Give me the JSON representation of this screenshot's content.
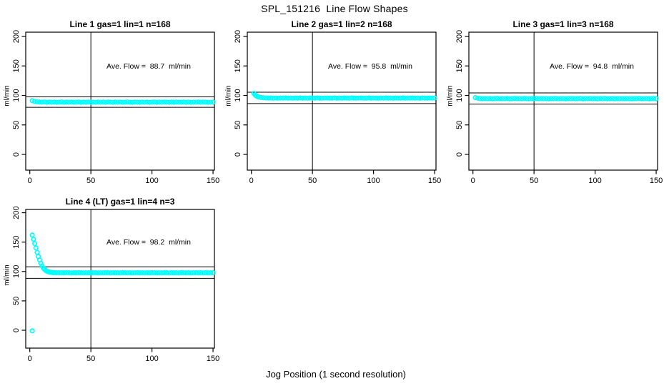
{
  "chart_data": {
    "type": "scatter",
    "title": "SPL_151216  Line Flow Shapes",
    "xlabel": "Jog Position (1 second resolution)",
    "ylabel": "ml/min",
    "marker": "open-circle",
    "point_color": "#00ffff",
    "line_color": "#000000",
    "background": "#ffffff",
    "grid": false,
    "legend": "none",
    "xlim": [
      0,
      150
    ],
    "ylim": [
      -20,
      200
    ],
    "xticks": [
      0,
      50,
      100,
      150
    ],
    "yticks": [
      0,
      50,
      100,
      150,
      200
    ],
    "vline_x": 50,
    "panels": [
      {
        "title": "Line 1 gas=1 lin=1 n=168",
        "annotation": "Ave. Flow =  88.7  ml/min",
        "ave_flow": 88.7,
        "hlines": [
          97.6,
          79.8
        ],
        "vline": 50,
        "points": [
          [
            2,
            91.0
          ],
          [
            4,
            89.7
          ],
          [
            6,
            89.1
          ],
          [
            8,
            88.8
          ],
          [
            10,
            88.6
          ],
          [
            12,
            88.9
          ],
          [
            14,
            88.4
          ],
          [
            16,
            88.7
          ],
          [
            18,
            88.5
          ],
          [
            20,
            88.8
          ],
          [
            22,
            88.3
          ],
          [
            24,
            88.6
          ],
          [
            26,
            88.9
          ],
          [
            28,
            88.4
          ],
          [
            30,
            88.7
          ],
          [
            32,
            88.5
          ],
          [
            34,
            88.8
          ],
          [
            36,
            88.4
          ],
          [
            38,
            88.6
          ],
          [
            40,
            88.9
          ],
          [
            42,
            88.3
          ],
          [
            44,
            88.7
          ],
          [
            46,
            88.5
          ],
          [
            48,
            88.8
          ],
          [
            50,
            88.4
          ],
          [
            52,
            88.6
          ],
          [
            54,
            88.3
          ],
          [
            56,
            88.8
          ],
          [
            58,
            88.5
          ],
          [
            60,
            88.7
          ],
          [
            62,
            88.4
          ],
          [
            64,
            88.9
          ],
          [
            66,
            88.6
          ],
          [
            68,
            88.3
          ],
          [
            70,
            88.7
          ],
          [
            72,
            88.5
          ],
          [
            74,
            88.8
          ],
          [
            76,
            88.4
          ],
          [
            78,
            88.6
          ],
          [
            80,
            88.9
          ],
          [
            82,
            88.5
          ],
          [
            84,
            88.3
          ],
          [
            86,
            88.7
          ],
          [
            88,
            88.6
          ],
          [
            90,
            88.4
          ],
          [
            92,
            88.8
          ],
          [
            94,
            88.5
          ],
          [
            96,
            88.7
          ],
          [
            98,
            88.3
          ],
          [
            100,
            88.6
          ],
          [
            102,
            88.9
          ],
          [
            104,
            88.4
          ],
          [
            106,
            88.7
          ],
          [
            108,
            88.5
          ],
          [
            110,
            88.8
          ],
          [
            112,
            88.6
          ],
          [
            114,
            88.3
          ],
          [
            116,
            88.7
          ],
          [
            118,
            88.4
          ],
          [
            120,
            88.9
          ],
          [
            122,
            88.5
          ],
          [
            124,
            88.6
          ],
          [
            126,
            88.8
          ],
          [
            128,
            88.4
          ],
          [
            130,
            88.7
          ],
          [
            132,
            88.3
          ],
          [
            134,
            88.6
          ],
          [
            136,
            88.5
          ],
          [
            138,
            88.9
          ],
          [
            140,
            88.4
          ],
          [
            142,
            88.7
          ],
          [
            144,
            88.6
          ],
          [
            146,
            88.3
          ],
          [
            148,
            88.5
          ],
          [
            150,
            88.6
          ]
        ]
      },
      {
        "title": "Line 2 gas=1 lin=2 n=168",
        "annotation": "Ave. Flow =  95.8  ml/min",
        "ave_flow": 95.8,
        "hlines": [
          105.4,
          86.2
        ],
        "vline": 50,
        "points": [
          [
            2,
            103.5
          ],
          [
            3,
            101.0
          ],
          [
            4,
            99.3
          ],
          [
            5,
            98.0
          ],
          [
            6,
            97.2
          ],
          [
            8,
            96.4
          ],
          [
            10,
            96.0
          ],
          [
            12,
            95.7
          ],
          [
            14,
            95.5
          ],
          [
            16,
            95.8
          ],
          [
            18,
            95.4
          ],
          [
            20,
            95.6
          ],
          [
            22,
            95.3
          ],
          [
            24,
            95.7
          ],
          [
            26,
            95.5
          ],
          [
            28,
            95.8
          ],
          [
            30,
            95.4
          ],
          [
            32,
            95.6
          ],
          [
            34,
            95.3
          ],
          [
            36,
            95.7
          ],
          [
            38,
            95.5
          ],
          [
            40,
            95.8
          ],
          [
            42,
            95.4
          ],
          [
            44,
            95.6
          ],
          [
            46,
            95.3
          ],
          [
            48,
            95.7
          ],
          [
            50,
            95.5
          ],
          [
            52,
            95.4
          ],
          [
            54,
            95.8
          ],
          [
            56,
            95.5
          ],
          [
            58,
            95.3
          ],
          [
            60,
            95.6
          ],
          [
            62,
            95.7
          ],
          [
            64,
            95.4
          ],
          [
            66,
            95.5
          ],
          [
            68,
            95.8
          ],
          [
            70,
            95.3
          ],
          [
            72,
            95.6
          ],
          [
            74,
            95.4
          ],
          [
            76,
            95.7
          ],
          [
            78,
            95.5
          ],
          [
            80,
            95.3
          ],
          [
            82,
            95.8
          ],
          [
            84,
            95.5
          ],
          [
            86,
            95.4
          ],
          [
            88,
            95.6
          ],
          [
            90,
            95.7
          ],
          [
            92,
            95.3
          ],
          [
            94,
            95.5
          ],
          [
            96,
            95.8
          ],
          [
            98,
            95.4
          ],
          [
            100,
            95.6
          ],
          [
            102,
            95.5
          ],
          [
            104,
            95.3
          ],
          [
            106,
            95.7
          ],
          [
            108,
            95.4
          ],
          [
            110,
            95.8
          ],
          [
            112,
            95.5
          ],
          [
            114,
            95.6
          ],
          [
            116,
            95.3
          ],
          [
            118,
            95.7
          ],
          [
            120,
            95.4
          ],
          [
            122,
            95.5
          ],
          [
            124,
            95.8
          ],
          [
            126,
            95.3
          ],
          [
            128,
            95.6
          ],
          [
            130,
            95.5
          ],
          [
            132,
            95.7
          ],
          [
            134,
            95.4
          ],
          [
            136,
            95.6
          ],
          [
            138,
            95.3
          ],
          [
            140,
            95.8
          ],
          [
            142,
            95.5
          ],
          [
            144,
            95.4
          ],
          [
            146,
            95.6
          ],
          [
            148,
            95.5
          ],
          [
            150,
            95.7
          ]
        ]
      },
      {
        "title": "Line 3 gas=1 lin=3 n=168",
        "annotation": "Ave. Flow =  94.8  ml/min",
        "ave_flow": 94.8,
        "hlines": [
          104.3,
          85.3
        ],
        "vline": 50,
        "points": [
          [
            2,
            96.2
          ],
          [
            4,
            95.3
          ],
          [
            6,
            94.8
          ],
          [
            8,
            94.5
          ],
          [
            10,
            94.7
          ],
          [
            12,
            94.4
          ],
          [
            14,
            94.8
          ],
          [
            16,
            94.3
          ],
          [
            18,
            94.6
          ],
          [
            20,
            94.9
          ],
          [
            22,
            94.4
          ],
          [
            24,
            94.7
          ],
          [
            26,
            94.5
          ],
          [
            28,
            94.8
          ],
          [
            30,
            94.3
          ],
          [
            32,
            94.6
          ],
          [
            34,
            94.9
          ],
          [
            36,
            94.5
          ],
          [
            38,
            94.7
          ],
          [
            40,
            94.4
          ],
          [
            42,
            94.8
          ],
          [
            44,
            94.5
          ],
          [
            46,
            94.3
          ],
          [
            48,
            94.7
          ],
          [
            50,
            94.6
          ],
          [
            52,
            94.9
          ],
          [
            54,
            94.4
          ],
          [
            56,
            94.7
          ],
          [
            58,
            94.5
          ],
          [
            60,
            94.8
          ],
          [
            62,
            94.3
          ],
          [
            64,
            94.6
          ],
          [
            66,
            94.5
          ],
          [
            68,
            94.9
          ],
          [
            70,
            94.4
          ],
          [
            72,
            94.7
          ],
          [
            74,
            94.6
          ],
          [
            76,
            94.3
          ],
          [
            78,
            94.8
          ],
          [
            80,
            94.5
          ],
          [
            82,
            94.7
          ],
          [
            84,
            94.4
          ],
          [
            86,
            94.6
          ],
          [
            88,
            94.9
          ],
          [
            90,
            94.3
          ],
          [
            92,
            94.7
          ],
          [
            94,
            94.5
          ],
          [
            96,
            94.8
          ],
          [
            98,
            94.4
          ],
          [
            100,
            94.6
          ],
          [
            102,
            94.3
          ],
          [
            104,
            94.7
          ],
          [
            106,
            94.5
          ],
          [
            108,
            94.9
          ],
          [
            110,
            94.4
          ],
          [
            112,
            94.6
          ],
          [
            114,
            94.8
          ],
          [
            116,
            94.3
          ],
          [
            118,
            94.7
          ],
          [
            120,
            94.5
          ],
          [
            122,
            94.6
          ],
          [
            124,
            94.4
          ],
          [
            126,
            94.8
          ],
          [
            128,
            94.5
          ],
          [
            130,
            94.3
          ],
          [
            132,
            94.7
          ],
          [
            134,
            94.6
          ],
          [
            136,
            94.9
          ],
          [
            138,
            94.4
          ],
          [
            140,
            94.5
          ],
          [
            142,
            94.7
          ],
          [
            144,
            94.3
          ],
          [
            146,
            94.6
          ],
          [
            148,
            94.8
          ],
          [
            150,
            94.5
          ]
        ]
      },
      {
        "title": "Line 4 (LT) gas=1 lin=4 n=3",
        "annotation": "Ave. Flow =  98.2  ml/min",
        "ave_flow": 98.2,
        "hlines": [
          108.0,
          88.4
        ],
        "vline": 50,
        "points": [
          [
            2,
            -1
          ],
          [
            2,
            162
          ],
          [
            3,
            155
          ],
          [
            4,
            147.5
          ],
          [
            5,
            140
          ],
          [
            6,
            132.5
          ],
          [
            7,
            125.5
          ],
          [
            8,
            119.5
          ],
          [
            9,
            114
          ],
          [
            10,
            109.5
          ],
          [
            11,
            106
          ],
          [
            12,
            103.5
          ],
          [
            13,
            101.8
          ],
          [
            14,
            100.5
          ],
          [
            15,
            99.6
          ],
          [
            16,
            99.0
          ],
          [
            17,
            98.6
          ],
          [
            18,
            98.3
          ],
          [
            19,
            98.1
          ],
          [
            20,
            98.0
          ],
          [
            22,
            97.9
          ],
          [
            24,
            97.8
          ],
          [
            26,
            97.9
          ],
          [
            28,
            97.7
          ],
          [
            30,
            98.0
          ],
          [
            32,
            97.8
          ],
          [
            34,
            97.6
          ],
          [
            36,
            97.9
          ],
          [
            38,
            97.7
          ],
          [
            40,
            98.0
          ],
          [
            42,
            97.8
          ],
          [
            44,
            97.6
          ],
          [
            46,
            97.9
          ],
          [
            48,
            97.8
          ],
          [
            50,
            97.7
          ],
          [
            52,
            98.0
          ],
          [
            54,
            97.8
          ],
          [
            56,
            97.6
          ],
          [
            58,
            97.9
          ],
          [
            60,
            97.7
          ],
          [
            62,
            97.8
          ],
          [
            64,
            98.0
          ],
          [
            66,
            97.6
          ],
          [
            68,
            97.9
          ],
          [
            70,
            97.7
          ],
          [
            72,
            97.8
          ],
          [
            74,
            97.6
          ],
          [
            76,
            98.0
          ],
          [
            78,
            97.8
          ],
          [
            80,
            97.7
          ],
          [
            82,
            97.9
          ],
          [
            84,
            97.6
          ],
          [
            86,
            97.8
          ],
          [
            88,
            98.0
          ],
          [
            90,
            97.7
          ],
          [
            92,
            97.9
          ],
          [
            94,
            97.6
          ],
          [
            96,
            97.8
          ],
          [
            98,
            97.7
          ],
          [
            100,
            98.0
          ],
          [
            102,
            97.8
          ],
          [
            104,
            97.6
          ],
          [
            106,
            97.9
          ],
          [
            108,
            97.7
          ],
          [
            110,
            97.8
          ],
          [
            112,
            98.0
          ],
          [
            114,
            97.6
          ],
          [
            116,
            97.9
          ],
          [
            118,
            97.7
          ],
          [
            120,
            97.8
          ],
          [
            122,
            97.6
          ],
          [
            124,
            98.0
          ],
          [
            126,
            97.8
          ],
          [
            128,
            97.7
          ],
          [
            130,
            97.9
          ],
          [
            132,
            97.6
          ],
          [
            134,
            97.8
          ],
          [
            136,
            98.0
          ],
          [
            138,
            97.7
          ],
          [
            140,
            97.9
          ],
          [
            142,
            97.6
          ],
          [
            144,
            97.8
          ],
          [
            146,
            97.7
          ],
          [
            148,
            97.9
          ],
          [
            150,
            97.8
          ]
        ]
      }
    ]
  }
}
